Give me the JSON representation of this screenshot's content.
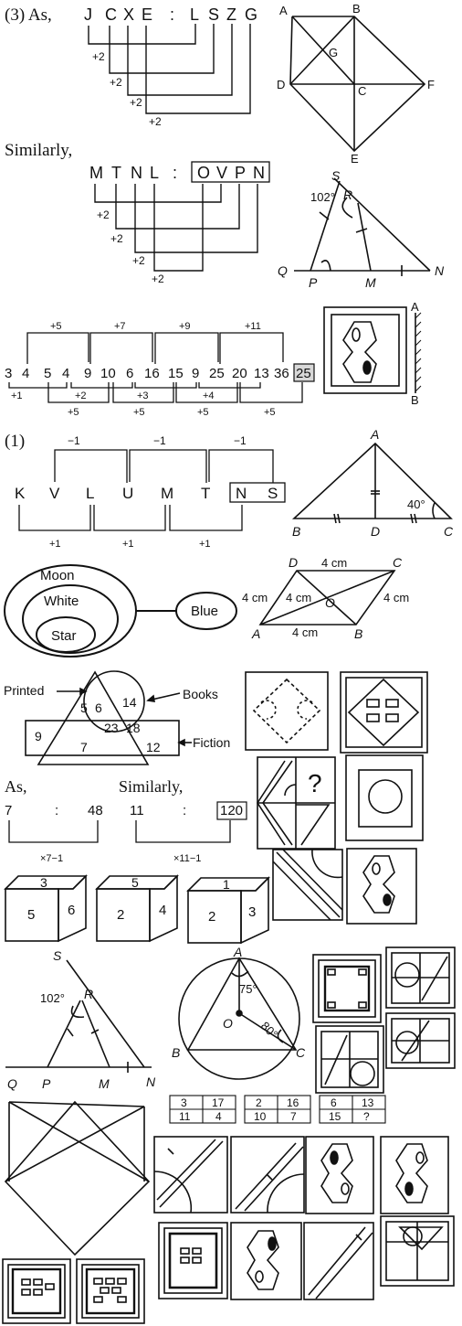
{
  "section3": {
    "heading": "(3) As,",
    "word1": [
      "J",
      "C",
      "X",
      "E"
    ],
    "colon": ":",
    "word2": [
      "L",
      "S",
      "Z",
      "G"
    ],
    "shift": "+2",
    "similarly": "Similarly,",
    "word3": [
      "M",
      "T",
      "N",
      "L"
    ],
    "word4": [
      "O",
      "V",
      "P",
      "N"
    ]
  },
  "square_diagram": {
    "labels": [
      "A",
      "B",
      "G",
      "D",
      "C",
      "F",
      "E"
    ]
  },
  "triangle1": {
    "labels": [
      "S",
      "R",
      "Q",
      "P",
      "M",
      "N"
    ],
    "angle": "102°"
  },
  "number_series": {
    "numbers": [
      "3",
      "4",
      "5",
      "4",
      "9",
      "10",
      "6",
      "16",
      "15",
      "9",
      "25",
      "20",
      "13",
      "36",
      "25"
    ],
    "top_labels": [
      "+5",
      "+7",
      "+9",
      "+11"
    ],
    "bottom_labels": [
      "+1",
      "+2",
      "+3",
      "+4"
    ],
    "bottom2_labels": [
      "+5",
      "+5",
      "+5",
      "+5"
    ]
  },
  "mirror": {
    "labels": [
      "A",
      "B"
    ]
  },
  "section1": {
    "heading": "(1)",
    "letters": [
      "K",
      "V",
      "L",
      "U",
      "M",
      "T",
      "N",
      "S"
    ],
    "top_labels": [
      "−1",
      "−1",
      "−1"
    ],
    "bottom_labels": [
      "+1",
      "+1",
      "+1"
    ]
  },
  "triangle2": {
    "labels": [
      "A",
      "B",
      "D",
      "C"
    ],
    "angle": "40°"
  },
  "venn_moon": {
    "labels": [
      "Moon",
      "White",
      "Star",
      "Blue"
    ]
  },
  "rhombus": {
    "labels": [
      "D",
      "C",
      "A",
      "B",
      "O"
    ],
    "sides": [
      "4 cm",
      "4 cm",
      "4 cm",
      "4 cm",
      "4 cm"
    ]
  },
  "venn_books": {
    "labels": [
      "Printed",
      "Books",
      "Fiction"
    ],
    "numbers": [
      "5",
      "6",
      "14",
      "23",
      "18",
      "9",
      "7",
      "12"
    ]
  },
  "ratio": {
    "as": "As,",
    "similarly": "Similarly,",
    "left": [
      "7",
      ":",
      "48"
    ],
    "right": [
      "11",
      ":",
      "120"
    ],
    "left_op": "×7−1",
    "right_op": "×11−1"
  },
  "question_mark": "?",
  "dice": [
    {
      "top": "3",
      "front": "5",
      "side": "6"
    },
    {
      "top": "5",
      "front": "2",
      "side": "4"
    },
    {
      "top": "1",
      "front": "2",
      "side": "3"
    }
  ],
  "triangle3": {
    "labels": [
      "S",
      "R",
      "Q",
      "P",
      "M",
      "N"
    ],
    "angle": "102°"
  },
  "circle": {
    "labels": [
      "A",
      "O",
      "B",
      "C"
    ],
    "angles": [
      "75°",
      "80°"
    ]
  },
  "grid_table": {
    "blocks": [
      [
        [
          "3",
          "17"
        ],
        [
          "11",
          "4"
        ]
      ],
      [
        [
          "2",
          "16"
        ],
        [
          "10",
          "7"
        ]
      ],
      [
        [
          "6",
          "13"
        ],
        [
          "15",
          "?"
        ]
      ]
    ]
  }
}
